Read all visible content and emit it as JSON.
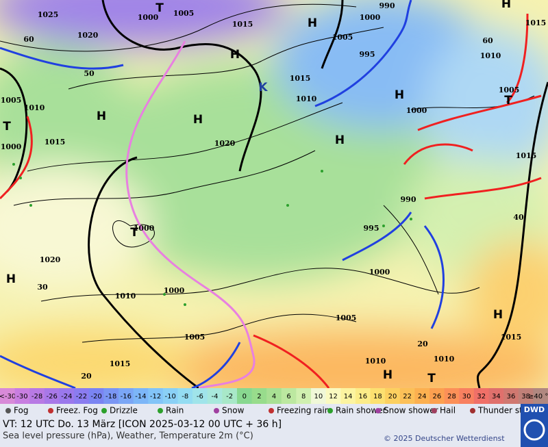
{
  "map": {
    "labels": [
      "1025",
      "1020",
      "1000",
      "1005",
      "T",
      "1015",
      "H",
      "990",
      "1000",
      "1005",
      "995",
      "H",
      "1015",
      "1010",
      "K",
      "H",
      "1000",
      "1015",
      "1010",
      "1005",
      "T",
      "1005",
      "1010",
      "T",
      "1015",
      "1000",
      "H",
      "H",
      "1020",
      "H",
      "1015",
      "990",
      "995",
      "1000",
      "T",
      "1020",
      "H",
      "1010",
      "1000",
      "1000",
      "1005",
      "1005",
      "1015",
      "1010",
      "1010",
      "1015",
      "H",
      "H",
      "T",
      "H",
      "60",
      "50",
      "60",
      "40",
      "30",
      "20",
      "20"
    ]
  },
  "scale": {
    "items": [
      {
        "label": "<-30",
        "color": "#d88ad8"
      },
      {
        "label": "-30",
        "color": "#c87ee0"
      },
      {
        "label": "-28",
        "color": "#b87ae4"
      },
      {
        "label": "-26",
        "color": "#a878e8"
      },
      {
        "label": "-24",
        "color": "#9a78ec"
      },
      {
        "label": "-22",
        "color": "#8a7cf0"
      },
      {
        "label": "-20",
        "color": "#7a84f2"
      },
      {
        "label": "-18",
        "color": "#7a96f4"
      },
      {
        "label": "-16",
        "color": "#7aa6f6"
      },
      {
        "label": "-14",
        "color": "#7cb6f8"
      },
      {
        "label": "-12",
        "color": "#82c4f8"
      },
      {
        "label": "-10",
        "color": "#8ad0f6"
      },
      {
        "label": "-8",
        "color": "#94dcf2"
      },
      {
        "label": "-6",
        "color": "#a0e4ea"
      },
      {
        "label": "-4",
        "color": "#a8e8dc"
      },
      {
        "label": "-2",
        "color": "#a8e8c8"
      },
      {
        "label": "0",
        "color": "#88d890"
      },
      {
        "label": "2",
        "color": "#98dc8c"
      },
      {
        "label": "4",
        "color": "#a8e094"
      },
      {
        "label": "6",
        "color": "#bce8a0"
      },
      {
        "label": "8",
        "color": "#d0f0b0"
      },
      {
        "label": "10",
        "color": "#f0f8d8"
      },
      {
        "label": "12",
        "color": "#fafac0"
      },
      {
        "label": "14",
        "color": "#fcf4a0"
      },
      {
        "label": "16",
        "color": "#fcec88"
      },
      {
        "label": "18",
        "color": "#fce070"
      },
      {
        "label": "20",
        "color": "#fcd060"
      },
      {
        "label": "22",
        "color": "#fcc058"
      },
      {
        "label": "24",
        "color": "#fcb050"
      },
      {
        "label": "26",
        "color": "#fca050"
      },
      {
        "label": "28",
        "color": "#fc9058"
      },
      {
        "label": "30",
        "color": "#f88060"
      },
      {
        "label": "32",
        "color": "#f07068"
      },
      {
        "label": "34",
        "color": "#e0706c"
      },
      {
        "label": "36",
        "color": "#d07870"
      },
      {
        "label": "38",
        "color": "#c08078"
      },
      {
        "label": "≥40 °C",
        "color": "#b08880"
      }
    ]
  },
  "weather_legend": [
    "Fog",
    "Freez. Fog",
    "Drizzle",
    "Rain",
    "Snow",
    "Freezing rain",
    "Rain shower",
    "Snow shower",
    "Hail",
    "Thunder storm"
  ],
  "footer": {
    "valid_time": "VT: 12 UTC Do.  13 März [ICON 2025-03-12  00 UTC + 36 h]",
    "description": "Sea level pressure (hPa), Weather, Temperature 2m (°C)",
    "copyright": "© 2025 Deutscher Wetterdienst",
    "logo": "DWD"
  }
}
